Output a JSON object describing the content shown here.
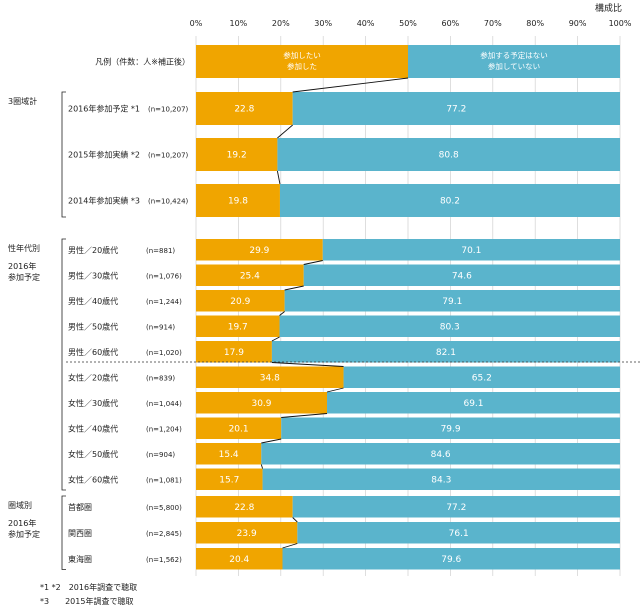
{
  "header": {
    "unit_label": "構成比"
  },
  "legend": {
    "label": "凡例（件数：人※補正後）",
    "item1": "参加したい\n参加した",
    "item2": "参加する予定はない\n参加していない"
  },
  "colors": {
    "orange": "#f0a500",
    "blue": "#5ab4cc",
    "gridline": "#d0d0d0",
    "text": "#222222"
  },
  "chart_data": {
    "type": "bar",
    "orientation": "horizontal",
    "stacked": true,
    "xlim": [
      0,
      100
    ],
    "xticks": [
      "0%",
      "10%",
      "20%",
      "30%",
      "40%",
      "50%",
      "60%",
      "70%",
      "80%",
      "90%",
      "100%"
    ],
    "series": [
      {
        "name": "参加したい／参加した",
        "color": "#f0a500"
      },
      {
        "name": "参加する予定はない／参加していない",
        "color": "#5ab4cc"
      }
    ],
    "groups": [
      {
        "label": "3圏域計",
        "sublabel": "",
        "rows": [
          {
            "label": "2016年参加予定 *1",
            "n": "(n=10,207)",
            "values": [
              22.8,
              77.2
            ]
          },
          {
            "label": "2015年参加実績 *2",
            "n": "(n=10,207)",
            "values": [
              19.2,
              80.8
            ]
          },
          {
            "label": "2014年参加実績 *3",
            "n": "(n=10,424)",
            "values": [
              19.8,
              80.2
            ]
          }
        ]
      },
      {
        "label": "性年代別",
        "sublabel": "2016年\n参加予定",
        "rows": [
          {
            "label": "男性／20歳代",
            "n": "(n=881)",
            "values": [
              29.9,
              70.1
            ]
          },
          {
            "label": "男性／30歳代",
            "n": "(n=1,076)",
            "values": [
              25.4,
              74.6
            ]
          },
          {
            "label": "男性／40歳代",
            "n": "(n=1,244)",
            "values": [
              20.9,
              79.1
            ]
          },
          {
            "label": "男性／50歳代",
            "n": "(n=914)",
            "values": [
              19.7,
              80.3
            ]
          },
          {
            "label": "男性／60歳代",
            "n": "(n=1,020)",
            "values": [
              17.9,
              82.1
            ]
          },
          {
            "label": "女性／20歳代",
            "n": "(n=839)",
            "values": [
              34.8,
              65.2
            ]
          },
          {
            "label": "女性／30歳代",
            "n": "(n=1,044)",
            "values": [
              30.9,
              69.1
            ]
          },
          {
            "label": "女性／40歳代",
            "n": "(n=1,204)",
            "values": [
              20.1,
              79.9
            ]
          },
          {
            "label": "女性／50歳代",
            "n": "(n=904)",
            "values": [
              15.4,
              84.6
            ]
          },
          {
            "label": "女性／60歳代",
            "n": "(n=1,081)",
            "values": [
              15.7,
              84.3
            ]
          }
        ]
      },
      {
        "label": "圏域別",
        "sublabel": "2016年\n参加予定",
        "rows": [
          {
            "label": "首都圏",
            "n": "(n=5,800)",
            "values": [
              22.8,
              77.2
            ]
          },
          {
            "label": "関西圏",
            "n": "(n=2,845)",
            "values": [
              23.9,
              76.1
            ]
          },
          {
            "label": "東海圏",
            "n": "(n=1,562)",
            "values": [
              20.4,
              79.6
            ]
          }
        ]
      }
    ]
  },
  "footnotes": [
    "*1 *2　2016年調査で聴取",
    "*3　　2015年調査で聴取"
  ]
}
